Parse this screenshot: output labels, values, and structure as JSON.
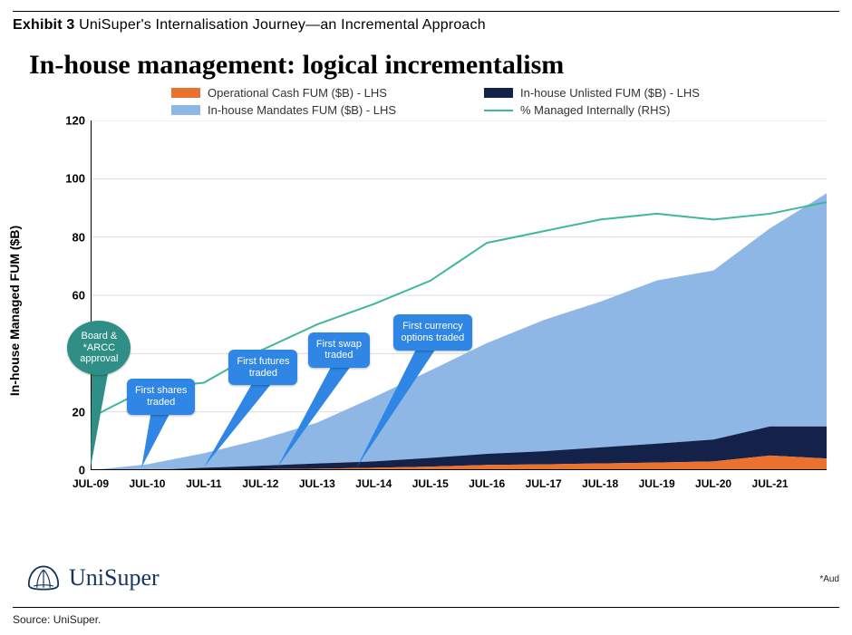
{
  "exhibit": {
    "label": "Exhibit 3",
    "title": "UniSuper's Internalisation Journey—an Incremental Approach"
  },
  "chart_title": "In-house management: logical incrementalism",
  "ylabel": "In-house Managed FUM ($B)",
  "legend": [
    {
      "label": "Operational Cash FUM ($B) - LHS",
      "color": "#e9722e",
      "type": "block"
    },
    {
      "label": "In-house Unlisted FUM ($B) - LHS",
      "color": "#14224a",
      "type": "block"
    },
    {
      "label": "In-house Mandates FUM ($B) - LHS",
      "color": "#8eb7e6",
      "type": "block"
    },
    {
      "label": "% Managed Internally (RHS)",
      "color": "#3fb79d",
      "type": "line"
    }
  ],
  "y": {
    "min": 0,
    "max": 120,
    "ticks": [
      0,
      20,
      40,
      60,
      80,
      100,
      120
    ]
  },
  "x_ticks": [
    "JUL-09",
    "JUL-10",
    "JUL-11",
    "JUL-12",
    "JUL-13",
    "JUL-14",
    "JUL-15",
    "JUL-16",
    "JUL-17",
    "JUL-18",
    "JUL-19",
    "JUL-20",
    "JUL-21"
  ],
  "x_span": 13,
  "series": {
    "cash": [
      0,
      0,
      0,
      0.3,
      0.5,
      0.8,
      1.2,
      1.8,
      2.0,
      2.3,
      2.6,
      3.0,
      5.0,
      4.0
    ],
    "unlisted": [
      0,
      0,
      0.8,
      1.2,
      1.8,
      2.2,
      3.0,
      3.8,
      4.5,
      5.5,
      6.5,
      7.5,
      10,
      11
    ],
    "mandates": [
      0,
      2,
      5,
      9,
      14,
      22,
      30,
      38,
      45,
      50,
      56,
      58,
      68,
      80
    ],
    "pct": [
      18,
      28,
      30,
      41,
      50,
      57,
      65,
      78,
      82,
      86,
      88,
      86,
      88,
      92
    ]
  },
  "colors": {
    "cash": "#e9722e",
    "unlisted": "#14224a",
    "mandates": "#8eb7e6",
    "pct": "#3fb79d",
    "plot_bg": "#ffffff",
    "grid": "#dddddd",
    "axis": "#000000"
  },
  "callouts": [
    {
      "text": "Board &\n*ARCC\napproval",
      "x_year": 0.15,
      "y_val": 42,
      "shape": "teal",
      "tip_year": 0.0
    },
    {
      "text": "First shares\ntraded",
      "x_year": 1.2,
      "y_val": 22,
      "shape": "blue",
      "tip_year": 0.9
    },
    {
      "text": "First futures\ntraded",
      "x_year": 3.0,
      "y_val": 32,
      "shape": "blue",
      "tip_year": 2.0
    },
    {
      "text": "First swap\ntraded",
      "x_year": 4.4,
      "y_val": 38,
      "shape": "blue",
      "tip_year": 3.3
    },
    {
      "text": "First currency\noptions traded",
      "x_year": 5.9,
      "y_val": 44,
      "shape": "blue",
      "tip_year": 4.7
    }
  ],
  "brand": "UniSuper",
  "aud_note": "*Aud",
  "source": "Source: UniSuper.",
  "style": {
    "title_fontsize_pt": 22,
    "legend_fontsize_pt": 10,
    "tick_fontsize_pt": 10,
    "line_width_pct": 2,
    "bg": "#ffffff"
  }
}
